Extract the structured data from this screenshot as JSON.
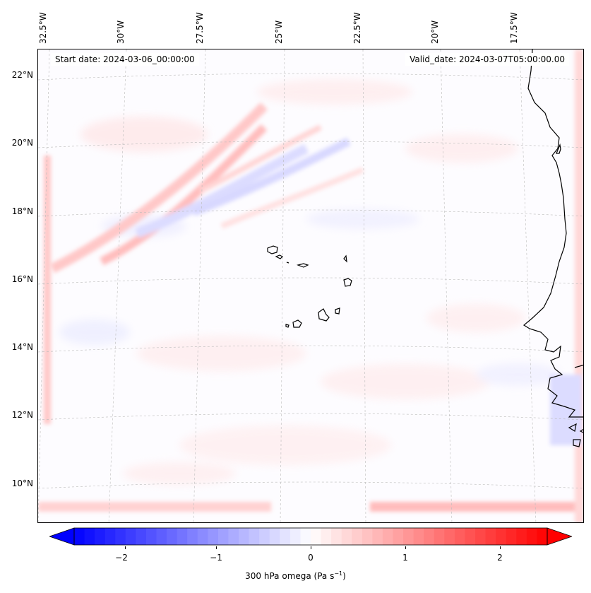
{
  "map": {
    "top_labels": [
      "32.5°W",
      "30°W",
      "27.5°W",
      "25°W",
      "22.5°W",
      "20°W",
      "17.5°W"
    ],
    "left_labels": [
      "22°N",
      "20°N",
      "18°N",
      "16°N",
      "14°N",
      "12°N",
      "10°N"
    ],
    "start_date": "Start date: 2024-03-06_00:00:00",
    "valid_date": "Valid_date: 2024-03-07T05:00:00.00"
  },
  "colorbar": {
    "ticks": [
      "−2",
      "−1",
      "0",
      "1",
      "2"
    ],
    "label_prefix": "300 hPa omega (Pa s",
    "label_exp": "−1",
    "label_suffix": ")",
    "min": -2.75,
    "max": 2.75,
    "neg_color": "#0000ff",
    "pos_color": "#ff0000"
  }
}
